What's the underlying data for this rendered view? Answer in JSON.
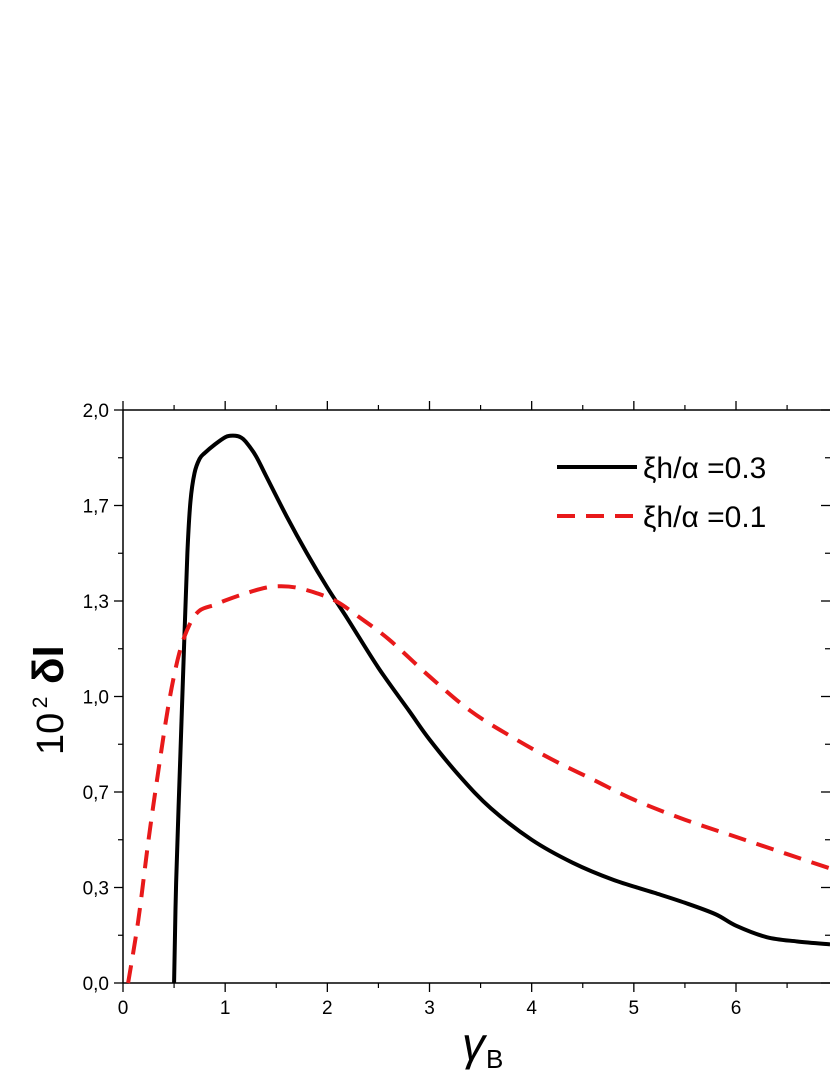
{
  "chart_data": {
    "type": "line",
    "xlabel": "γ",
    "xlabel_sub": "B",
    "ylabel_prefix": "10",
    "ylabel_sup": "2",
    "ylabel_main": "δI",
    "xlim": [
      0,
      6.92
    ],
    "ylim": [
      0,
      2.0
    ],
    "x_ticks": [
      0,
      1,
      2,
      3,
      4,
      5,
      6
    ],
    "x_tick_labels": [
      "0",
      "1",
      "2",
      "3",
      "4",
      "5",
      "6"
    ],
    "y_ticks": [
      0,
      0.33333,
      0.66667,
      1.0,
      1.33333,
      1.66667,
      2.0
    ],
    "y_tick_labels": [
      "0,0",
      "0,3",
      "0,7",
      "1,0",
      "1,3",
      "1,7",
      "2,0"
    ],
    "grid": false,
    "legend_position": "top-right",
    "series": [
      {
        "name": "ξh/α =0.3",
        "color": "#000000",
        "style": "solid",
        "x": [
          0.5,
          0.52,
          0.56,
          0.6,
          0.63,
          0.66,
          0.7,
          0.75,
          0.8,
          0.9,
          1.0,
          1.05,
          1.1,
          1.15,
          1.2,
          1.3,
          1.4,
          1.6,
          1.8,
          2.0,
          2.2,
          2.5,
          2.8,
          3.0,
          3.3,
          3.6,
          4.0,
          4.4,
          4.8,
          5.2,
          5.5,
          5.8,
          6.0,
          6.3,
          6.6,
          6.92
        ],
        "y": [
          0.0,
          0.35,
          0.78,
          1.2,
          1.5,
          1.68,
          1.78,
          1.83,
          1.85,
          1.88,
          1.905,
          1.91,
          1.91,
          1.905,
          1.89,
          1.84,
          1.77,
          1.63,
          1.5,
          1.38,
          1.27,
          1.1,
          0.95,
          0.85,
          0.72,
          0.61,
          0.5,
          0.42,
          0.36,
          0.315,
          0.28,
          0.24,
          0.2,
          0.16,
          0.145,
          0.135
        ]
      },
      {
        "name": "ξh/α =0.1",
        "color": "#e8191a",
        "style": "dashed",
        "x": [
          0.05,
          0.15,
          0.25,
          0.35,
          0.45,
          0.55,
          0.65,
          0.75,
          0.9,
          1.0,
          1.2,
          1.4,
          1.55,
          1.7,
          1.9,
          2.1,
          2.3,
          2.6,
          3.0,
          3.4,
          3.8,
          4.2,
          4.6,
          5.0,
          5.5,
          6.0,
          6.5,
          6.92
        ],
        "y": [
          0.0,
          0.22,
          0.5,
          0.75,
          0.98,
          1.15,
          1.25,
          1.3,
          1.32,
          1.335,
          1.36,
          1.38,
          1.385,
          1.38,
          1.36,
          1.33,
          1.28,
          1.2,
          1.07,
          0.95,
          0.86,
          0.78,
          0.71,
          0.64,
          0.57,
          0.51,
          0.45,
          0.4
        ]
      }
    ]
  }
}
